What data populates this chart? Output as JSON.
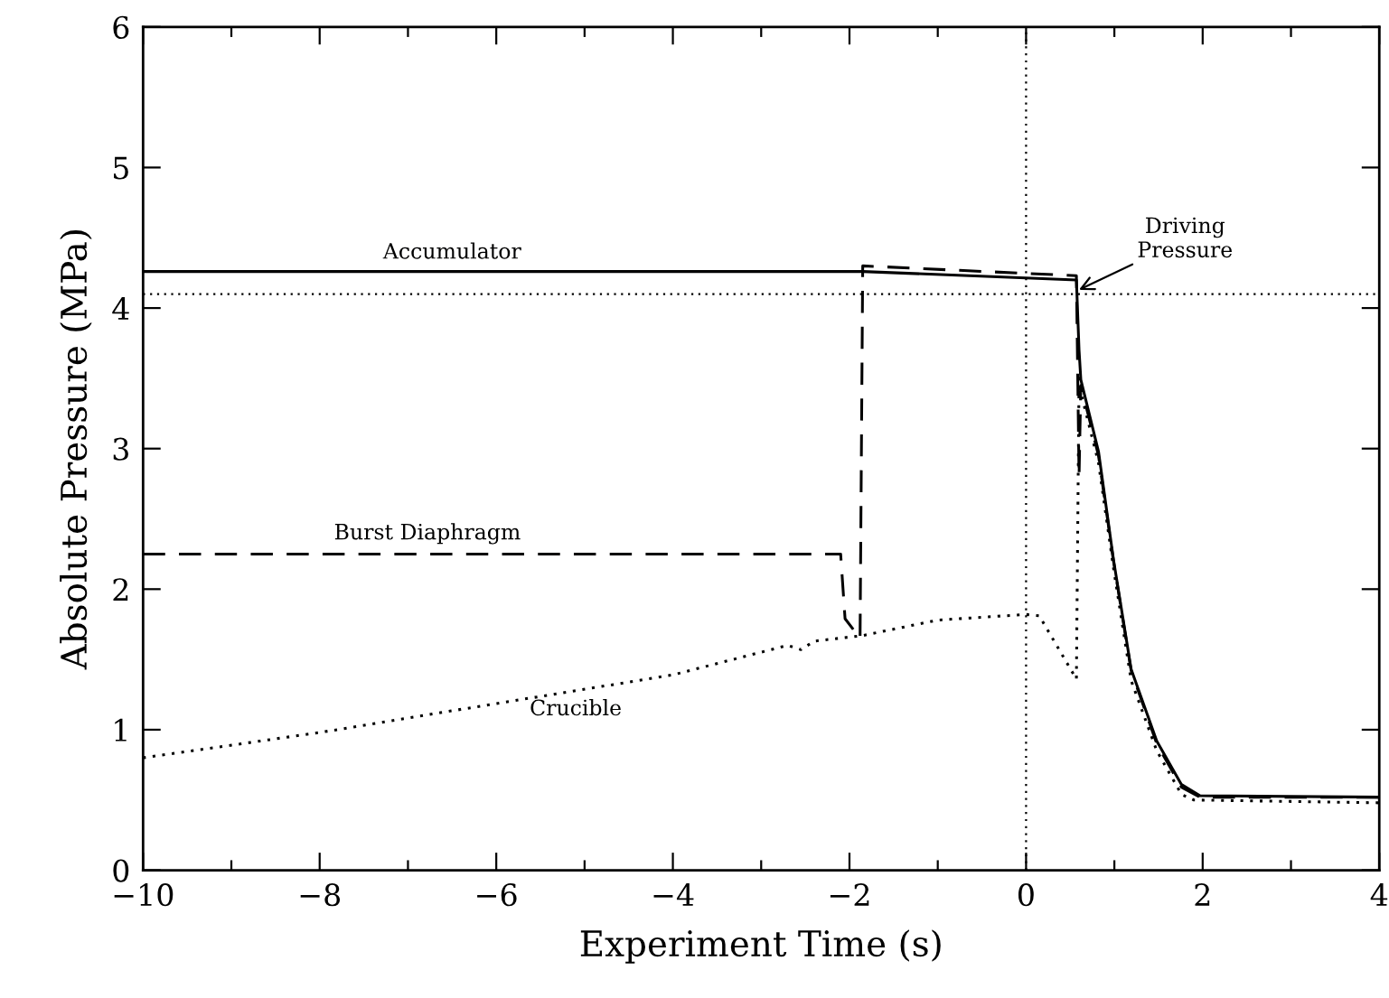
{
  "chart_data": {
    "type": "line",
    "xlabel": "Experiment Time (s)",
    "ylabel": "Absolute Pressure (MPa)",
    "xlim": [
      -10,
      4
    ],
    "ylim": [
      0,
      6
    ],
    "xticks": [
      {
        "value": -10,
        "label": "−10"
      },
      {
        "value": -8,
        "label": "−8"
      },
      {
        "value": -6,
        "label": "−6"
      },
      {
        "value": -4,
        "label": "−4"
      },
      {
        "value": -2,
        "label": "−2"
      },
      0,
      2,
      4
    ],
    "yticks": [
      0,
      1,
      2,
      3,
      4,
      5,
      6
    ],
    "grid": false,
    "legend": false,
    "marker": "none",
    "series": [
      {
        "name": "Accumulator",
        "color": "#000001",
        "line_style": "solid",
        "x": [
          -10,
          -1.85,
          0.57,
          0.6,
          0.62,
          0.82,
          0.99,
          1.19,
          1.48,
          1.76,
          1.97,
          4
        ],
        "values": [
          4.26,
          4.26,
          4.2,
          3.7,
          3.49,
          2.98,
          2.21,
          1.43,
          0.92,
          0.61,
          0.53,
          0.52
        ]
      },
      {
        "name": "Burst Diaphragm",
        "color": "#010000",
        "line_style": "dashed",
        "x": [
          -10,
          -2.1,
          -2.05,
          -1.88,
          -1.85,
          0.57,
          0.6,
          0.62,
          0.82,
          0.99,
          1.19,
          1.48,
          1.76,
          1.97,
          4
        ],
        "values": [
          2.25,
          2.25,
          1.79,
          1.65,
          4.3,
          4.23,
          2.8,
          3.45,
          2.95,
          2.2,
          1.42,
          0.9,
          0.59,
          0.52,
          0.52
        ]
      },
      {
        "name": "Crucible",
        "color": "#000100",
        "line_style": "dotted",
        "x": [
          -10,
          -8,
          -6.35,
          -4,
          -2.7,
          -2.55,
          -2.4,
          -1.85,
          -1,
          0,
          0.15,
          0.57,
          0.6,
          0.62,
          0.82,
          0.99,
          1.19,
          1.48,
          1.76,
          1.9,
          4
        ],
        "values": [
          0.8,
          0.98,
          1.15,
          1.39,
          1.6,
          1.57,
          1.63,
          1.67,
          1.78,
          1.82,
          1.81,
          1.36,
          3.5,
          3.4,
          2.9,
          2.15,
          1.35,
          0.85,
          0.54,
          0.5,
          0.48
        ]
      }
    ],
    "ref_lines": [
      {
        "axis": "x",
        "value": 0,
        "label": null,
        "line_style": "dotted",
        "color": "#010101"
      },
      {
        "axis": "y",
        "value": 4.1,
        "label": null,
        "line_style": "dotted",
        "color": "#020202"
      }
    ],
    "annotations": [
      {
        "text": "Driving\nPressure",
        "x": 0.6,
        "y": 4.13
      }
    ]
  }
}
